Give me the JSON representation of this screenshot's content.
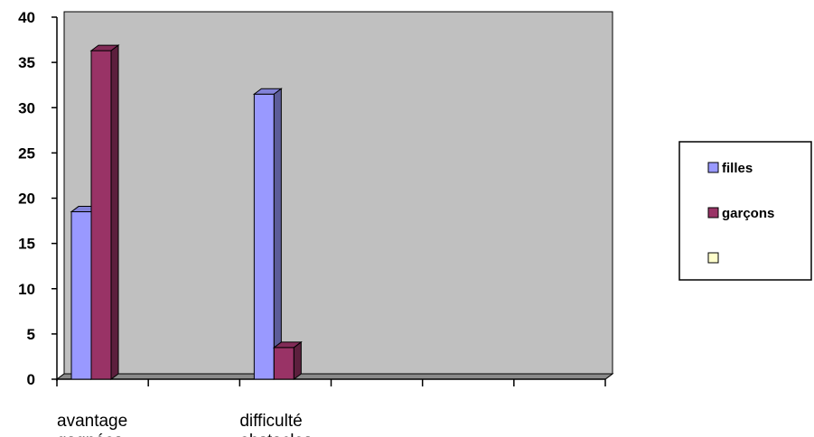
{
  "chart_data": {
    "type": "bar",
    "style": "3d-clustered-column",
    "categories": [
      "avantage\ngagnées",
      "",
      "difficulté\nobstacles",
      "",
      "",
      ""
    ],
    "series": [
      {
        "name": "filles",
        "values": [
          18.5,
          null,
          31.5,
          null,
          null,
          null
        ],
        "color": "#9999ff"
      },
      {
        "name": "garçons",
        "values": [
          36.3,
          null,
          3.5,
          null,
          null,
          null
        ],
        "color": "#993366"
      },
      {
        "name": "",
        "values": [
          null,
          null,
          null,
          null,
          null,
          null
        ],
        "color": "#ffffcc"
      }
    ],
    "ylim": [
      0,
      40
    ],
    "yticks": [
      0,
      5,
      10,
      15,
      20,
      25,
      30,
      35,
      40
    ],
    "title": "",
    "xlabel": "",
    "ylabel": "",
    "grid": false,
    "legend": "right",
    "plot_background": "#c0c0c0"
  }
}
